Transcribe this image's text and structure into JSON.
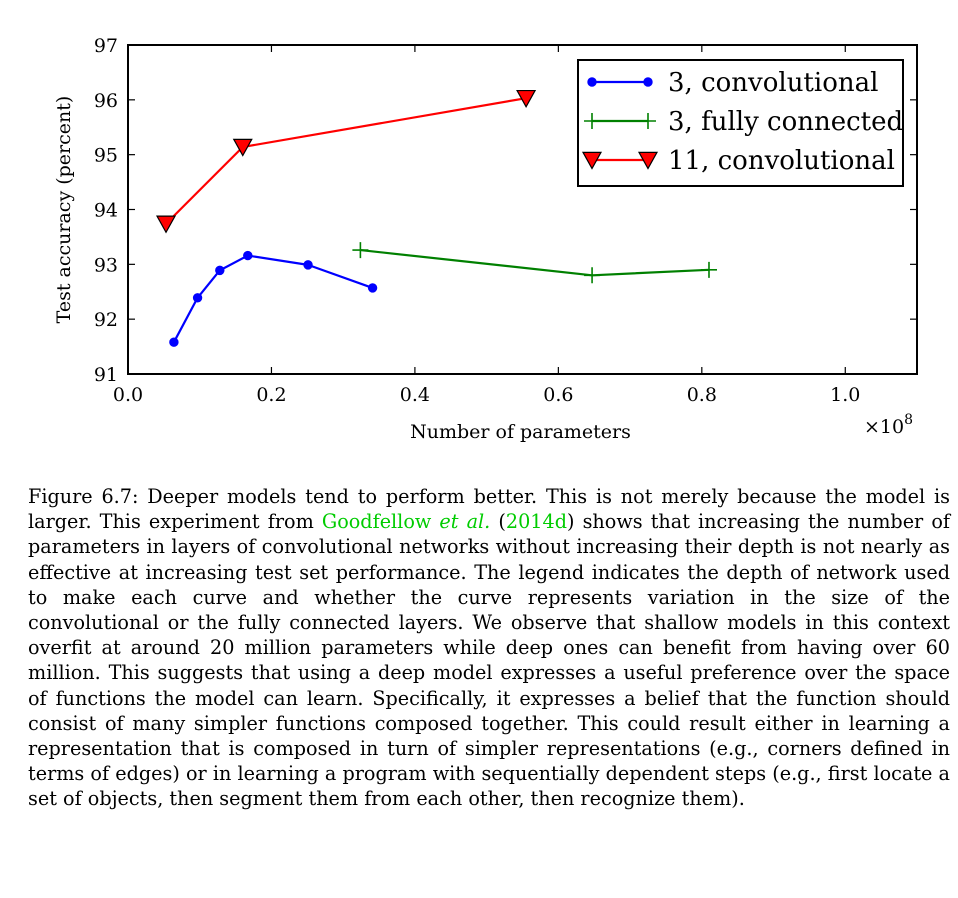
{
  "chart_data": {
    "type": "line",
    "xlabel": "Number of parameters",
    "ylabel": "Test accuracy (percent)",
    "x_scale_label": "×10^8",
    "x_scale_base": "×10",
    "x_scale_exp": "8",
    "xlim": [
      0.0,
      1.1
    ],
    "ylim": [
      91,
      97
    ],
    "xticks": [
      0.0,
      0.2,
      0.4,
      0.6,
      0.8,
      1.0
    ],
    "xtick_labels": [
      "0.0",
      "0.2",
      "0.4",
      "0.6",
      "0.8",
      "1.0"
    ],
    "yticks": [
      91,
      92,
      93,
      94,
      95,
      96,
      97
    ],
    "ytick_labels": [
      "91",
      "92",
      "93",
      "94",
      "95",
      "96",
      "97"
    ],
    "grid": false,
    "legend_position": "top-right",
    "series": [
      {
        "name": "3, convolutional",
        "color": "#0000ff",
        "marker": "circle",
        "x": [
          0.064,
          0.097,
          0.128,
          0.167,
          0.251,
          0.341
        ],
        "y": [
          91.58,
          92.39,
          92.89,
          93.16,
          92.99,
          92.57
        ]
      },
      {
        "name": "3, fully connected",
        "color": "#008000",
        "marker": "plus",
        "x": [
          0.324,
          0.647,
          0.81
        ],
        "y": [
          93.26,
          92.8,
          92.9
        ]
      },
      {
        "name": "11, convolutional",
        "color": "#ff0000",
        "marker": "triangle-down",
        "x": [
          0.053,
          0.16,
          0.555
        ],
        "y": [
          93.74,
          95.14,
          96.03
        ]
      }
    ]
  },
  "caption": {
    "prefix": "Figure 6.7: Deeper models tend to perform better. This is not merely because the model is larger. This experiment from ",
    "cite_name": "Goodfellow ",
    "cite_etal": "et al.",
    "cite_open": " (",
    "cite_year": "2014d",
    "cite_close": ")",
    "suffix": " shows that increasing the number of parameters in layers of convolutional networks without increasing their depth is not nearly as effective at increasing test set performance. The legend indicates the depth of network used to make each curve and whether the curve represents variation in the size of the convolutional or the fully connected layers. We observe that shallow models in this context overfit at around 20 million parameters while deep ones can benefit from having over 60 million. This suggests that using a deep model expresses a useful preference over the space of functions the model can learn. Specifically, it expresses a belief that the function should consist of many simpler functions composed together. This could result either in learning a representation that is composed in turn of simpler representations (e.g., corners defined in terms of edges) or in learning a program with sequentially dependent steps (e.g., first locate a set of objects, then segment them from each other, then recognize them)."
  }
}
